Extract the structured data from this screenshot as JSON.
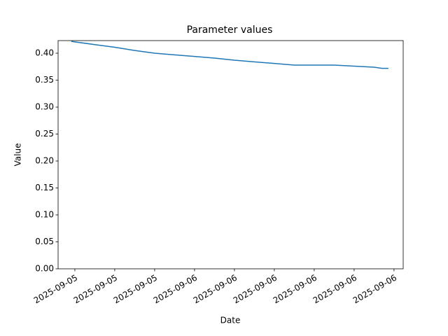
{
  "chart_data": {
    "type": "line",
    "title": "Parameter values",
    "x_label": "Date",
    "y_label": "Value",
    "x": [
      -0.09,
      0,
      0.5,
      1,
      1.5,
      2,
      2.5,
      3,
      3.5,
      4,
      4.5,
      5,
      5.5,
      6,
      6.5,
      7,
      7.5,
      7.7,
      7.86
    ],
    "series": [
      {
        "name": "Value",
        "color": "#1f77b4",
        "values": [
          0.422,
          0.421,
          0.416,
          0.411,
          0.405,
          0.4,
          0.397,
          0.394,
          0.391,
          0.387,
          0.384,
          0.381,
          0.378,
          0.378,
          0.378,
          0.376,
          0.374,
          0.372,
          0.372
        ]
      }
    ],
    "xlim": [
      -0.42,
      8.23
    ],
    "xticks": [
      {
        "value": 0,
        "label": "2025-09-05"
      },
      {
        "value": 1,
        "label": "2025-09-05"
      },
      {
        "value": 2,
        "label": "2025-09-05"
      },
      {
        "value": 3,
        "label": "2025-09-06"
      },
      {
        "value": 4,
        "label": "2025-09-06"
      },
      {
        "value": 5,
        "label": "2025-09-06"
      },
      {
        "value": 6,
        "label": "2025-09-06"
      },
      {
        "value": 7,
        "label": "2025-09-06"
      },
      {
        "value": 8,
        "label": "2025-09-06"
      }
    ],
    "ylim": [
      0,
      0.4234
    ],
    "yticks": [
      {
        "value": 0,
        "label": "0.00"
      },
      {
        "value": 0.05,
        "label": "0.05"
      },
      {
        "value": 0.1,
        "label": "0.10"
      },
      {
        "value": 0.15,
        "label": "0.15"
      },
      {
        "value": 0.2,
        "label": "0.20"
      },
      {
        "value": 0.25,
        "label": "0.25"
      },
      {
        "value": 0.3,
        "label": "0.30"
      },
      {
        "value": 0.35,
        "label": "0.35"
      },
      {
        "value": 0.4,
        "label": "0.40"
      }
    ],
    "grid": false
  }
}
